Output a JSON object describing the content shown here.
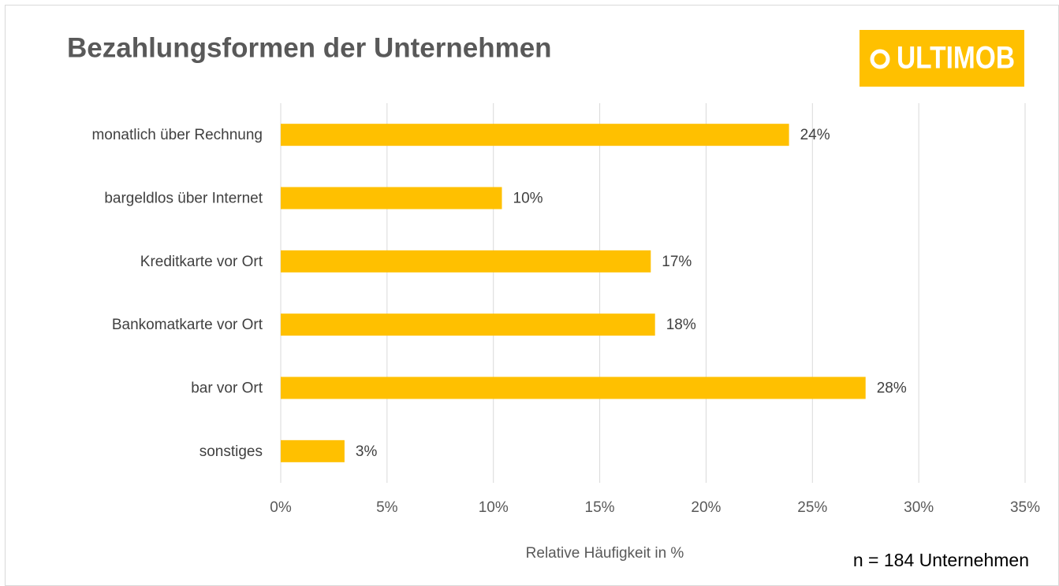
{
  "chart_data": {
    "type": "bar",
    "orientation": "horizontal",
    "title": "Bezahlungsformen der Unternehmen",
    "logo": "ULTIMOB",
    "annotation": "n = 184 Unternehmen",
    "xlabel": "Relative Häufigkeit in %",
    "categories": [
      "monatlich über Rechnung",
      "bargeldlos über Internet",
      "Kreditkarte vor Ort",
      "Bankomatkarte vor Ort",
      "bar vor Ort",
      "sonstiges"
    ],
    "values": [
      23.9,
      10.4,
      17.4,
      17.6,
      27.5,
      3.0
    ],
    "value_labels": [
      "24%",
      "10%",
      "17%",
      "18%",
      "28%",
      "3%"
    ],
    "color": "#ffc000",
    "xlim": [
      0,
      35
    ],
    "xticks": [
      {
        "value": 0,
        "label": "0%"
      },
      {
        "value": 5,
        "label": "5%"
      },
      {
        "value": 10,
        "label": "10%"
      },
      {
        "value": 15,
        "label": "15%"
      },
      {
        "value": 20,
        "label": "20%"
      },
      {
        "value": 25,
        "label": "25%"
      },
      {
        "value": 30,
        "label": "30%"
      },
      {
        "value": 35,
        "label": "35%"
      }
    ],
    "grid": true
  }
}
